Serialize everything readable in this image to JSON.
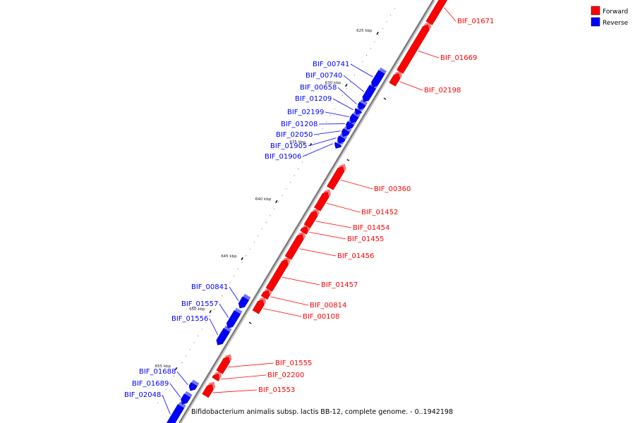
{
  "caption": "Bifidobacterium animalis subsp. lactis BB-12, complete genome. - 0..1942198",
  "legend": [
    {
      "label": "Forward",
      "color": "#ff0000"
    },
    {
      "label": "Reverse",
      "color": "#0000ff"
    }
  ],
  "colors": {
    "forward": "#ff0000",
    "reverse": "#0000ff",
    "backbone": "#888888"
  },
  "ticks": [
    {
      "label": "625 kbp"
    },
    {
      "label": "630 kbp"
    },
    {
      "label": "635 kbp"
    },
    {
      "label": "640 kbp"
    },
    {
      "label": "645 kbp"
    },
    {
      "label": "650 kbp"
    },
    {
      "label": "655 kbp"
    }
  ],
  "genes": [
    {
      "name": "BIF_01671",
      "strand": "forward"
    },
    {
      "name": "BIF_01669",
      "strand": "forward"
    },
    {
      "name": "BIF_02198",
      "strand": "forward"
    },
    {
      "name": "BIF_00741",
      "strand": "reverse"
    },
    {
      "name": "BIF_00740",
      "strand": "reverse"
    },
    {
      "name": "BIF_00658",
      "strand": "reverse"
    },
    {
      "name": "BIF_01209",
      "strand": "reverse"
    },
    {
      "name": "BIF_02199",
      "strand": "reverse"
    },
    {
      "name": "BIF_01208",
      "strand": "reverse"
    },
    {
      "name": "BIF_02050",
      "strand": "reverse"
    },
    {
      "name": "BIF_01905",
      "strand": "reverse"
    },
    {
      "name": "BIF_01906",
      "strand": "reverse"
    },
    {
      "name": "BIF_00360",
      "strand": "forward"
    },
    {
      "name": "BIF_01452",
      "strand": "forward"
    },
    {
      "name": "BIF_01454",
      "strand": "forward"
    },
    {
      "name": "BIF_01455",
      "strand": "forward"
    },
    {
      "name": "BIF_01456",
      "strand": "forward"
    },
    {
      "name": "BIF_01457",
      "strand": "forward"
    },
    {
      "name": "BIF_00814",
      "strand": "forward"
    },
    {
      "name": "BIF_00108",
      "strand": "forward"
    },
    {
      "name": "BIF_00841",
      "strand": "reverse"
    },
    {
      "name": "BIF_01557",
      "strand": "reverse"
    },
    {
      "name": "BIF_01556",
      "strand": "reverse"
    },
    {
      "name": "BIF_01555",
      "strand": "forward"
    },
    {
      "name": "BIF_02200",
      "strand": "forward"
    },
    {
      "name": "BIF_01553",
      "strand": "forward"
    },
    {
      "name": "BIF_01688",
      "strand": "reverse"
    },
    {
      "name": "BIF_01689",
      "strand": "reverse"
    },
    {
      "name": "BIF_02048",
      "strand": "reverse"
    }
  ]
}
